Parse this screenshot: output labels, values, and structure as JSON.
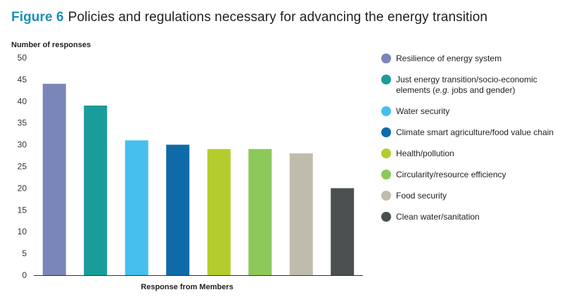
{
  "title": {
    "label": "Figure 6",
    "text": "Policies and regulations necessary for advancing the energy transition",
    "label_color": "#1a8fb8"
  },
  "chart_data": {
    "type": "bar",
    "title": "Policies and regulations necessary for advancing the energy transition",
    "ylabel": "Number of responses",
    "xlabel": "Response from Members",
    "ylim": [
      0,
      50
    ],
    "yticks": [
      "0",
      "5",
      "10",
      "15",
      "20",
      "25",
      "30",
      "35",
      "40",
      "45",
      "50"
    ],
    "grid": false,
    "legend_position": "right",
    "categories": [
      "Resilience of energy system",
      "Just energy transition/socio-economic elements (e.g. jobs and gender)",
      "Water security",
      "Climate smart agriculture/food value chain",
      "Health/pollution",
      "Circularity/resource efficiency",
      "Food security",
      "Clean water/sanitation"
    ],
    "values": [
      44,
      39,
      31,
      30,
      29,
      29,
      28,
      20
    ],
    "colors": [
      "#7a86b8",
      "#1a9c9a",
      "#46bfef",
      "#0f6aa8",
      "#b5cc2e",
      "#8dc85a",
      "#bfbcab",
      "#4a4f50"
    ]
  },
  "legend": [
    {
      "lines": [
        "Resilience of energy system"
      ],
      "color": "#7a86b8"
    },
    {
      "pre": "Just energy transition/socio-economic",
      "line2_pre": "elements (",
      "line2_italic": "e.g.",
      "line2_post": " jobs and gender)",
      "color": "#1a9c9a"
    },
    {
      "lines": [
        "Water security"
      ],
      "color": "#46bfef"
    },
    {
      "lines": [
        "Climate smart agriculture/food value chain"
      ],
      "color": "#0f6aa8"
    },
    {
      "lines": [
        "Health/pollution"
      ],
      "color": "#b5cc2e"
    },
    {
      "lines": [
        "Circularity/resource efficiency"
      ],
      "color": "#8dc85a"
    },
    {
      "lines": [
        "Food security"
      ],
      "color": "#bfbcab"
    },
    {
      "lines": [
        "Clean water/sanitation"
      ],
      "color": "#4a4f50"
    }
  ]
}
